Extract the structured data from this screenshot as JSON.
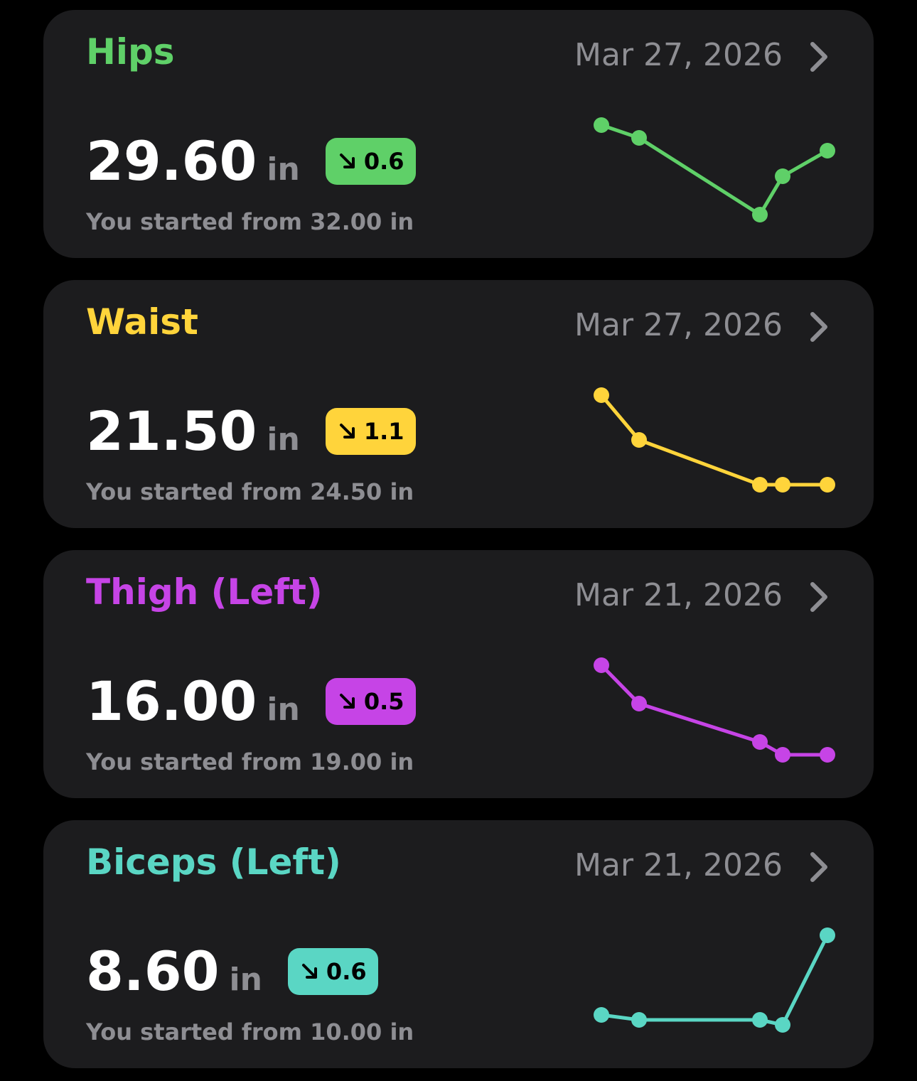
{
  "cards": [
    {
      "title": "Hips",
      "date": "Mar 27, 2026",
      "value": "29.60",
      "unit": "in",
      "change": "0.6",
      "direction": "down",
      "started": "You started from 32.00 in",
      "color": "#5fd068",
      "trend": [
        30.6,
        30.4,
        29.2,
        29.8,
        30.2
      ]
    },
    {
      "title": "Waist",
      "date": "Mar 27, 2026",
      "value": "21.50",
      "unit": "in",
      "change": "1.1",
      "direction": "down",
      "started": "You started from 24.50 in",
      "color": "#ffd43b",
      "trend": [
        23.1,
        22.8,
        22.5,
        22.5,
        22.5
      ]
    },
    {
      "title": "Thigh (Left)",
      "date": "Mar 21, 2026",
      "value": "16.00",
      "unit": "in",
      "change": "0.5",
      "direction": "down",
      "started": "You started from 19.00 in",
      "color": "#c644e6",
      "trend": [
        17.2,
        16.9,
        16.6,
        16.5,
        16.5
      ]
    },
    {
      "title": "Biceps (Left)",
      "date": "Mar 21, 2026",
      "value": "8.60",
      "unit": "in",
      "change": "0.6",
      "direction": "down",
      "started": "You started from 10.00 in",
      "color": "#5ad6c4",
      "trend": [
        8.0,
        7.9,
        7.9,
        7.8,
        9.6
      ]
    }
  ]
}
